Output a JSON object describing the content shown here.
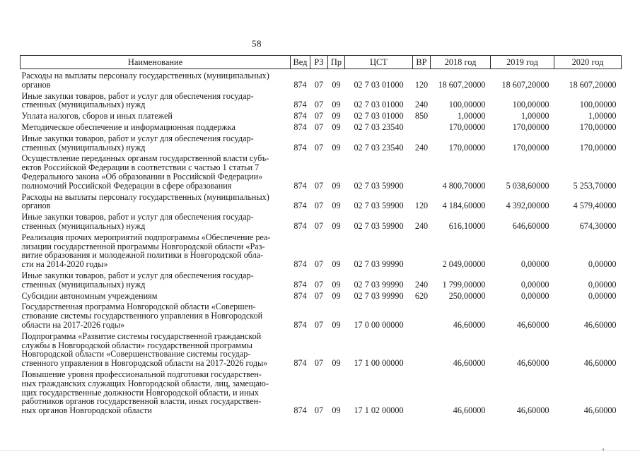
{
  "page": {
    "number": "58"
  },
  "colors": {
    "text": "#1b1b1b",
    "border": "#2b2b2b",
    "background": "#ffffff"
  },
  "table": {
    "columns": [
      "Наименование",
      "Вед",
      "РЗ",
      "Пр",
      "ЦСТ",
      "ВР",
      "2018 год",
      "2019 год",
      "2020 год"
    ],
    "rows": [
      {
        "name": "Расходы на выплаты персоналу государственных (муниципальных)\nорганов",
        "ved": "874",
        "rz": "07",
        "pr": "09",
        "cst": "02 7 03 01000",
        "vr": "120",
        "y2018": "18 607,20000",
        "y2019": "18 607,20000",
        "y2020": "18 607,20000"
      },
      {
        "name": "Иные закупки товаров, работ и услуг для обеспечения государ-\nственных (муниципальных) нужд",
        "ved": "874",
        "rz": "07",
        "pr": "09",
        "cst": "02 7 03 01000",
        "vr": "240",
        "y2018": "100,00000",
        "y2019": "100,00000",
        "y2020": "100,00000"
      },
      {
        "name": "Уплата налогов, сборов и иных платежей",
        "ved": "874",
        "rz": "07",
        "pr": "09",
        "cst": "02 7 03 01000",
        "vr": "850",
        "y2018": "1,00000",
        "y2019": "1,00000",
        "y2020": "1,00000"
      },
      {
        "name": "Методическое обеспечение и информационная поддержка",
        "ved": "874",
        "rz": "07",
        "pr": "09",
        "cst": "02 7 03 23540",
        "vr": "",
        "y2018": "170,00000",
        "y2019": "170,00000",
        "y2020": "170,00000"
      },
      {
        "name": "Иные закупки товаров, работ и услуг для обеспечения государ-\nственных (муниципальных) нужд",
        "ved": "874",
        "rz": "07",
        "pr": "09",
        "cst": "02 7 03 23540",
        "vr": "240",
        "y2018": "170,00000",
        "y2019": "170,00000",
        "y2020": "170,00000"
      },
      {
        "name": "Осуществление переданных органам государственной власти субъ-\nектов Российской Федерации в соответствии с частью 1 статьи 7\nФедерального закона «Об образовании в Российской Федерации»\nполномочий Российской Федерации в сфере образования",
        "ved": "874",
        "rz": "07",
        "pr": "09",
        "cst": "02 7 03 59900",
        "vr": "",
        "y2018": "4 800,70000",
        "y2019": "5 038,60000",
        "y2020": "5 253,70000"
      },
      {
        "name": "Расходы на выплаты персоналу государственных (муниципальных)\nорганов",
        "ved": "874",
        "rz": "07",
        "pr": "09",
        "cst": "02 7 03 59900",
        "vr": "120",
        "y2018": "4 184,60000",
        "y2019": "4 392,00000",
        "y2020": "4 579,40000"
      },
      {
        "name": "Иные закупки товаров, работ и услуг для обеспечения государ-\nственных (муниципальных) нужд",
        "ved": "874",
        "rz": "07",
        "pr": "09",
        "cst": "02 7 03 59900",
        "vr": "240",
        "y2018": "616,10000",
        "y2019": "646,60000",
        "y2020": "674,30000"
      },
      {
        "name": "Реализация прочих мероприятий подпрограммы «Обеспечение реа-\nлизации государственной программы Новгородской области «Раз-\nвитие образования и молодежной политики в Новгородской обла-\nсти на 2014-2020 годы»",
        "ved": "874",
        "rz": "07",
        "pr": "09",
        "cst": "02 7 03 99990",
        "vr": "",
        "y2018": "2 049,00000",
        "y2019": "0,00000",
        "y2020": "0,00000"
      },
      {
        "name": "Иные закупки товаров, работ и услуг для обеспечения государ-\nственных (муниципальных) нужд",
        "ved": "874",
        "rz": "07",
        "pr": "09",
        "cst": "02 7 03 99990",
        "vr": "240",
        "y2018": "1 799,00000",
        "y2019": "0,00000",
        "y2020": "0,00000"
      },
      {
        "name": "Субсидии автономным учреждениям",
        "ved": "874",
        "rz": "07",
        "pr": "09",
        "cst": "02 7 03 99990",
        "vr": "620",
        "y2018": "250,00000",
        "y2019": "0,00000",
        "y2020": "0,00000"
      },
      {
        "name": "Государственная программа Новгородской области «Совершен-\nствование системы государственного управления в Новгородской\nобласти на 2017-2026 годы»",
        "ved": "874",
        "rz": "07",
        "pr": "09",
        "cst": "17 0 00 00000",
        "vr": "",
        "y2018": "46,60000",
        "y2019": "46,60000",
        "y2020": "46,60000"
      },
      {
        "name": "Подпрограмма «Развитие системы государственной гражданской\nслужбы в Новгородской области» государственной программы\nНовгородской области «Совершенствование системы государ-\nственного управления в Новгородской области на 2017-2026 годы»",
        "ved": "874",
        "rz": "07",
        "pr": "09",
        "cst": "17 1 00 00000",
        "vr": "",
        "y2018": "46,60000",
        "y2019": "46,60000",
        "y2020": "46,60000"
      },
      {
        "name": "Повышение уровня профессиональной подготовки государствен-\nных гражданских служащих Новгородской области, лиц, замещаю-\nщих государственные должности Новгородской области, и иных\nработников органов государственной власти, иных государствен-\nных органов Новгородской области",
        "ved": "874",
        "rz": "07",
        "pr": "09",
        "cst": "17 1 02 00000",
        "vr": "",
        "y2018": "46,60000",
        "y2019": "46,60000",
        "y2020": "46,60000"
      }
    ]
  }
}
